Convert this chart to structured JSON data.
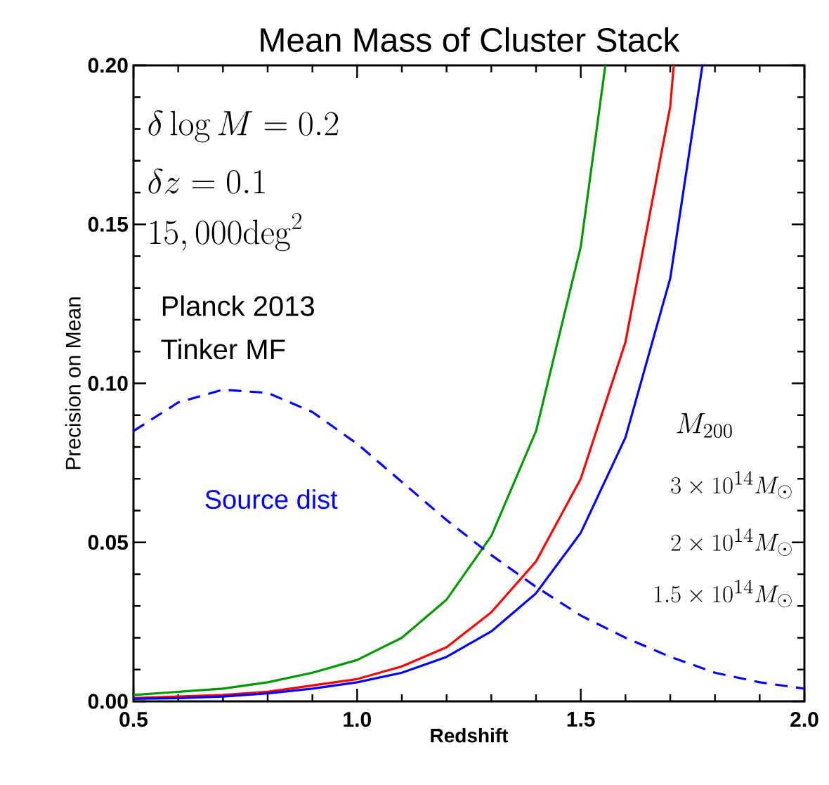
{
  "chart_data": {
    "type": "line",
    "title": "Mean Mass of Cluster Stack",
    "xlabel": "Redshift",
    "ylabel": "Precision on Mean",
    "xlim": [
      0.5,
      2.0
    ],
    "ylim": [
      0,
      0.2
    ],
    "xticks": [
      {
        "value": 0.5,
        "label": "0.5"
      },
      {
        "value": 1.0,
        "label": "1.0"
      },
      {
        "value": 1.5,
        "label": "1.5"
      },
      {
        "value": 2.0,
        "label": "2.0"
      }
    ],
    "yticks": [
      {
        "value": 0,
        "label": "0.00"
      },
      {
        "value": 0.05,
        "label": "0.05"
      },
      {
        "value": 0.1,
        "label": "0.10"
      },
      {
        "value": 0.15,
        "label": "0.15"
      },
      {
        "value": 0.2,
        "label": "0.20"
      }
    ],
    "legend_title": "M_{200}",
    "annotations": [
      "\\delta\\log M = 0.2",
      "\\delta z = 0.1",
      "15,000\\mathrm{deg}^2",
      "Planck 2013",
      "Tinker MF",
      "3\\times 10^{14}M_\\odot",
      "2\\times 10^{14}M_\\odot",
      "1.5\\times 10^{14}M_\\odot"
    ],
    "series": [
      {
        "color": "#009900",
        "x": [
          0.5,
          0.6,
          0.7,
          0.8,
          0.9,
          1.0,
          1.1,
          1.2,
          1.3,
          1.4,
          1.5,
          1.555
        ],
        "values": [
          0.002,
          0.003,
          0.004,
          0.006,
          0.009,
          0.013,
          0.02,
          0.032,
          0.052,
          0.085,
          0.143,
          0.2
        ]
      },
      {
        "color": "#ff0000",
        "x": [
          0.5,
          0.6,
          0.7,
          0.8,
          0.9,
          1.0,
          1.1,
          1.2,
          1.3,
          1.4,
          1.5,
          1.6,
          1.7,
          1.708
        ],
        "values": [
          0.001,
          0.0015,
          0.002,
          0.003,
          0.005,
          0.007,
          0.011,
          0.017,
          0.028,
          0.044,
          0.07,
          0.113,
          0.187,
          0.2
        ]
      },
      {
        "color": "#0000ff",
        "x": [
          0.5,
          0.6,
          0.7,
          0.8,
          0.9,
          1.0,
          1.1,
          1.2,
          1.3,
          1.4,
          1.5,
          1.6,
          1.7,
          1.772
        ],
        "values": [
          0.0008,
          0.001,
          0.0015,
          0.0025,
          0.004,
          0.006,
          0.009,
          0.014,
          0.022,
          0.034,
          0.053,
          0.083,
          0.133,
          0.2
        ]
      },
      {
        "name": "Source dist",
        "color": "#0000ff",
        "line_style": "dashed",
        "x": [
          0.5,
          0.6,
          0.7,
          0.8,
          0.9,
          1.0,
          1.1,
          1.2,
          1.3,
          1.4,
          1.5,
          1.6,
          1.7,
          1.8,
          1.9,
          2.0
        ],
        "values": [
          0.085,
          0.094,
          0.098,
          0.097,
          0.091,
          0.081,
          0.069,
          0.057,
          0.046,
          0.036,
          0.027,
          0.02,
          0.014,
          0.009,
          0.006,
          0.004
        ]
      }
    ]
  }
}
